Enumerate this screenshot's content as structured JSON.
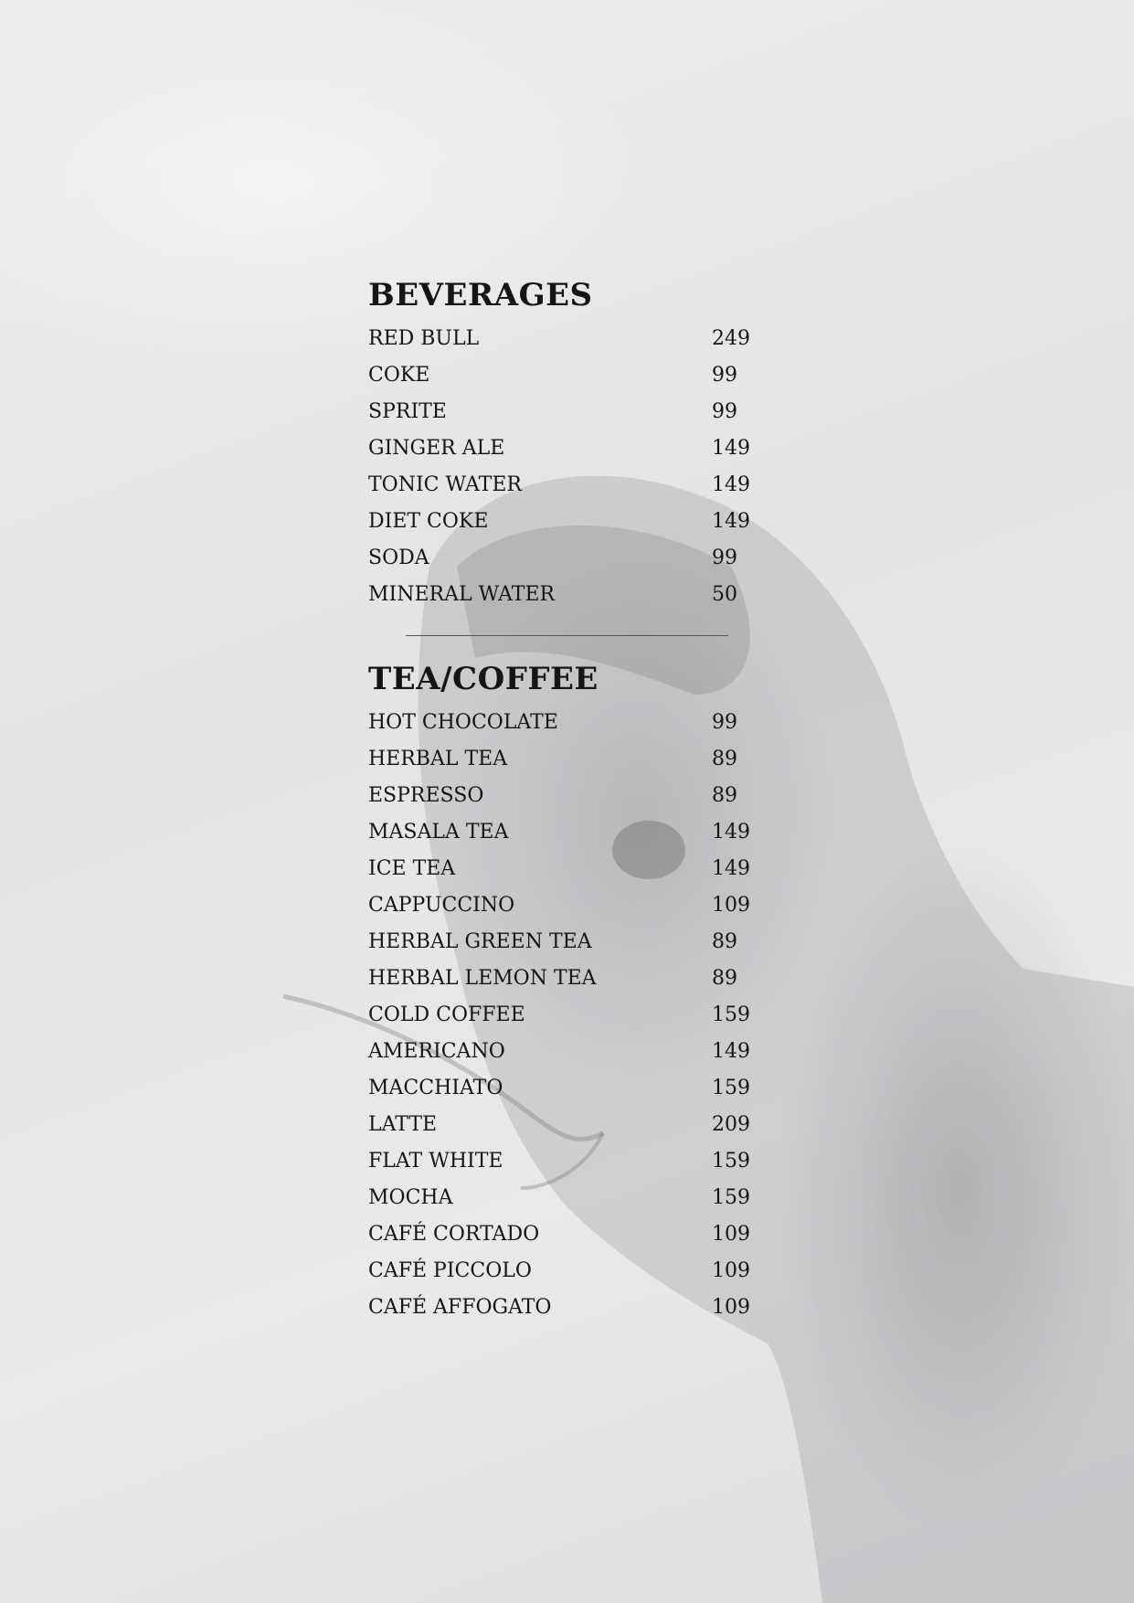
{
  "sections": [
    {
      "title": "BEVERAGES",
      "items": [
        {
          "name": "RED BULL",
          "price": "249"
        },
        {
          "name": "COKE",
          "price": "99"
        },
        {
          "name": "SPRITE",
          "price": "99"
        },
        {
          "name": "GINGER ALE",
          "price": "149"
        },
        {
          "name": "TONIC WATER",
          "price": "149"
        },
        {
          "name": "DIET COKE",
          "price": "149"
        },
        {
          "name": "SODA",
          "price": "99"
        },
        {
          "name": "MINERAL WATER",
          "price": "50"
        }
      ]
    },
    {
      "title": "TEA/COFFEE",
      "items": [
        {
          "name": "HOT CHOCOLATE",
          "price": "99"
        },
        {
          "name": "HERBAL TEA",
          "price": "89"
        },
        {
          "name": "ESPRESSO",
          "price": "89"
        },
        {
          "name": "MASALA TEA",
          "price": "149"
        },
        {
          "name": "ICE TEA",
          "price": "149"
        },
        {
          "name": "CAPPUCCINO",
          "price": "109"
        },
        {
          "name": "HERBAL GREEN TEA",
          "price": "89"
        },
        {
          "name": "HERBAL LEMON TEA",
          "price": "89"
        },
        {
          "name": "COLD COFFEE",
          "price": "159"
        },
        {
          "name": "AMERICANO",
          "price": "149"
        },
        {
          "name": "MACCHIATO",
          "price": "159"
        },
        {
          "name": "LATTE",
          "price": "209"
        },
        {
          "name": "FLAT WHITE",
          "price": "159"
        },
        {
          "name": "MOCHA",
          "price": "159"
        },
        {
          "name": "CAFÉ CORTADO",
          "price": "109"
        },
        {
          "name": "CAFÉ PICCOLO",
          "price": "109"
        },
        {
          "name": "CAFÉ AFFOGATO",
          "price": "109"
        }
      ]
    }
  ]
}
